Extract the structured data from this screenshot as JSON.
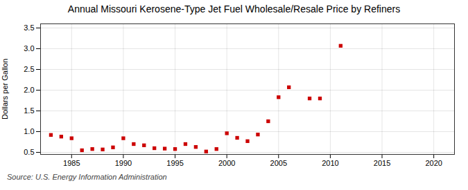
{
  "chart_data": {
    "type": "scatter",
    "title": "Annual Missouri Kerosene-Type Jet Fuel Wholesale/Resale Price by Refiners",
    "ylabel": "Dollars per Gallon",
    "caption": "Source: U.S. Energy Information Administration",
    "x": [
      1983,
      1984,
      1985,
      1986,
      1987,
      1988,
      1989,
      1990,
      1991,
      1992,
      1993,
      1994,
      1995,
      1996,
      1997,
      1998,
      1999,
      2000,
      2001,
      2002,
      2003,
      2004,
      2005,
      2006,
      2008,
      2009,
      2011
    ],
    "values": [
      0.92,
      0.88,
      0.84,
      0.55,
      0.58,
      0.57,
      0.62,
      0.84,
      0.7,
      0.67,
      0.6,
      0.59,
      0.58,
      0.7,
      0.63,
      0.52,
      0.58,
      0.96,
      0.85,
      0.77,
      0.93,
      1.25,
      1.83,
      2.07,
      1.8,
      1.8,
      3.07
    ],
    "color": "#cc0000",
    "marker": "square",
    "xlim": [
      1982,
      2022
    ],
    "ylim": [
      0.45,
      3.6
    ],
    "xticks": [
      1985,
      1990,
      1995,
      2000,
      2005,
      2010,
      2015,
      2020
    ],
    "yticks": [
      0.5,
      {
        "value": 1.0,
        "label": "1.0"
      },
      1.5,
      {
        "value": 2.0,
        "label": "2.0"
      },
      2.5,
      {
        "value": 3.0,
        "label": "3.0"
      },
      3.5
    ],
    "grid": true
  }
}
